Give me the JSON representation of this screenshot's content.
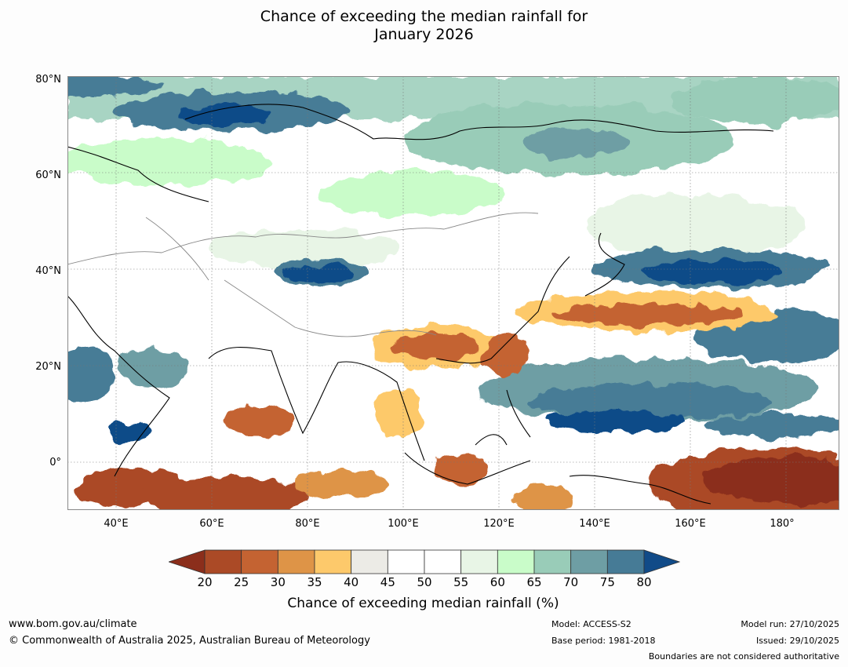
{
  "title_line1": "Chance of exceeding the median rainfall for",
  "title_line2": "January 2026",
  "lat_labels": [
    "80°N",
    "60°N",
    "40°N",
    "20°N",
    "0°"
  ],
  "lon_labels": [
    "40°E",
    "60°E",
    "80°E",
    "100°E",
    "120°E",
    "140°E",
    "160°E",
    "180°"
  ],
  "colorbar": {
    "ticks": [
      "20",
      "25",
      "30",
      "35",
      "40",
      "45",
      "50",
      "55",
      "60",
      "65",
      "70",
      "75",
      "80"
    ],
    "colors": [
      "#8b2e1b",
      "#ab4a26",
      "#c46332",
      "#de9447",
      "#fdc96b",
      "#ecebe6",
      "#ffffff",
      "#ffffff",
      "#e8f5e6",
      "#c9fcc9",
      "#99ccb8",
      "#6e9ea4",
      "#467b96",
      "#114b88"
    ],
    "label": "Chance of exceeding median rainfall (%)"
  },
  "footer": {
    "website": "www.bom.gov.au/climate",
    "copyright": "© Commonwealth of Australia 2025, Australian Bureau of Meteorology",
    "model": "Model: ACCESS-S2",
    "base_period": "Base period: 1981-2018",
    "model_run": "Model run: 27/10/2025",
    "issued": "Issued: 29/10/2025",
    "boundaries": "Boundaries are not considered authoritative"
  }
}
